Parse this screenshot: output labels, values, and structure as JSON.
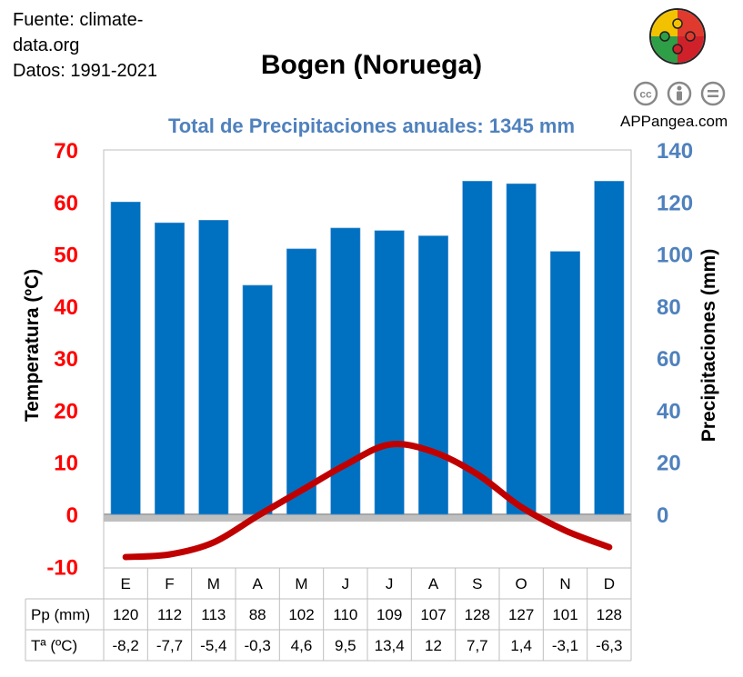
{
  "header": {
    "source_line1": "Fuente: climate-",
    "source_line2": "data.org",
    "period": "Datos: 1991-2021",
    "title": "Bogen (Noruega)",
    "brand": "APPangea.com"
  },
  "colors": {
    "bars": "#0070c0",
    "temperature_line": "#c00000",
    "left_axis": "#ff0000",
    "right_axis": "#4f81bd",
    "subtitle": "#4f81bd"
  },
  "icons": [
    "puzzle-logo-icon",
    "cc-icon",
    "attribution-icon",
    "no-derivatives-icon"
  ],
  "chart_data": {
    "type": "bar",
    "title": "Total de Precipitaciones anuales: 1345 mm",
    "categories": [
      "E",
      "F",
      "M",
      "A",
      "M",
      "J",
      "J",
      "A",
      "S",
      "O",
      "N",
      "D"
    ],
    "series": [
      {
        "name": "Pp (mm)",
        "type": "bar",
        "axis": "right",
        "values": [
          120,
          112,
          113,
          88,
          102,
          110,
          109,
          107,
          128,
          127,
          101,
          128
        ],
        "labels": [
          "120",
          "112",
          "113",
          "88",
          "102",
          "110",
          "109",
          "107",
          "128",
          "127",
          "101",
          "128"
        ]
      },
      {
        "name": "Tª (ºC)",
        "type": "line",
        "axis": "left",
        "values": [
          -8.2,
          -7.7,
          -5.4,
          -0.3,
          4.6,
          9.5,
          13.4,
          12,
          7.7,
          1.4,
          -3.1,
          -6.3
        ],
        "labels": [
          "-8,2",
          "-7,7",
          "-5,4",
          "-0,3",
          "4,6",
          "9,5",
          "13,4",
          "12",
          "7,7",
          "1,4",
          "-3,1",
          "-6,3"
        ]
      }
    ],
    "ylabel_left": "Temperatura (ºC)",
    "ylabel_right": "Precipitaciones (mm)",
    "ylim_left": [
      -10,
      70
    ],
    "ylim_right": [
      0,
      140
    ],
    "yticks_left": [
      "-10",
      "0",
      "10",
      "20",
      "30",
      "40",
      "50",
      "60",
      "70"
    ],
    "yticks_right": [
      "0",
      "20",
      "40",
      "60",
      "80",
      "100",
      "120",
      "140"
    ],
    "grid": false,
    "legend": "table-below"
  }
}
